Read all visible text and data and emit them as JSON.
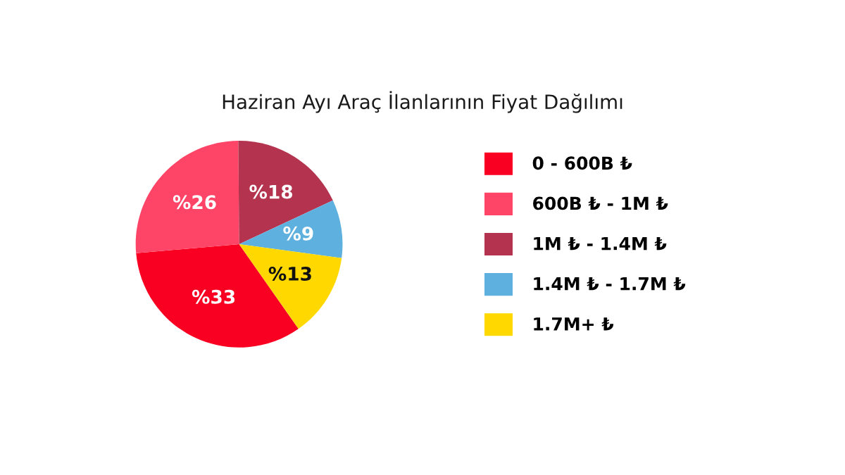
{
  "chart_data": {
    "type": "pie",
    "title": "Haziran Ayı Araç İlanlarının Fiyat Dağılımı",
    "categories": [
      "0 - 600B ₺",
      "600B ₺ - 1M ₺",
      "1M ₺ - 1.4M ₺",
      "1.4M ₺ - 1.7M ₺",
      "1.7M+ ₺"
    ],
    "values": [
      33,
      26,
      18,
      9,
      13
    ],
    "colors": [
      "#f90022",
      "#fe4567",
      "#b43450",
      "#5eb0df",
      "#ffd800"
    ],
    "value_labels": [
      "%33",
      "%26",
      "%18",
      "%9",
      "%13"
    ],
    "legend": "right"
  }
}
